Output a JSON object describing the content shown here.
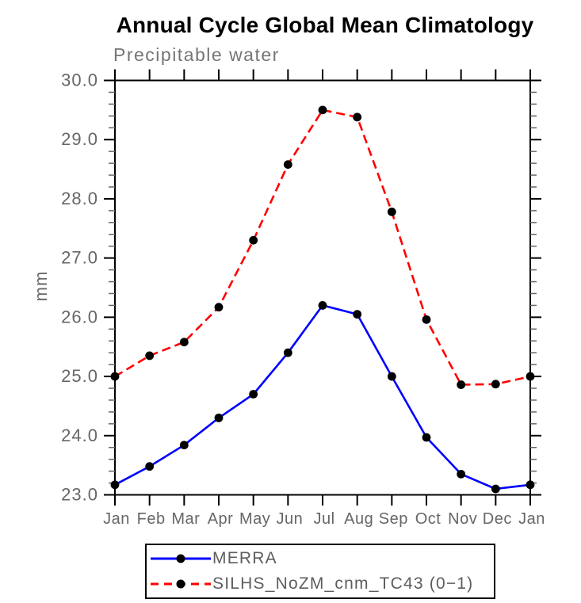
{
  "window": {
    "background": "#ffffff"
  },
  "chart_data": {
    "type": "line",
    "title": "Annual Cycle Global Mean Climatology",
    "subtitle": "Precipitable water",
    "ylabel": "mm",
    "x_labels": [
      "Jan",
      "Feb",
      "Mar",
      "Apr",
      "May",
      "Jun",
      "Jul",
      "Aug",
      "Sep",
      "Oct",
      "Nov",
      "Dec",
      "Jan"
    ],
    "y_tick_labels": [
      "23.0",
      "24.0",
      "25.0",
      "26.0",
      "27.0",
      "28.0",
      "29.0",
      "30.0"
    ],
    "ylim": [
      23.0,
      30.0
    ],
    "y_minor_step": 0.2,
    "grid": false,
    "legend_position": "bottom-left",
    "text_color": "#666666",
    "axis_color": "#000000",
    "marker_color": "#000000",
    "series": [
      {
        "name": "MERRA",
        "color": "#0000ff",
        "line_style": "solid",
        "marker": "filled-circle",
        "values": [
          23.17,
          23.48,
          23.84,
          24.3,
          24.7,
          25.4,
          26.2,
          26.05,
          25.0,
          23.97,
          23.35,
          23.1,
          23.17
        ]
      },
      {
        "name": "SILHS_NoZM_cnm_TC43 (0−1)",
        "color": "#ff0000",
        "line_style": "dashed",
        "marker": "filled-circle",
        "values": [
          25.0,
          25.35,
          25.58,
          26.17,
          27.3,
          28.58,
          29.5,
          29.38,
          27.78,
          25.96,
          24.86,
          24.87,
          25.0
        ]
      }
    ]
  }
}
